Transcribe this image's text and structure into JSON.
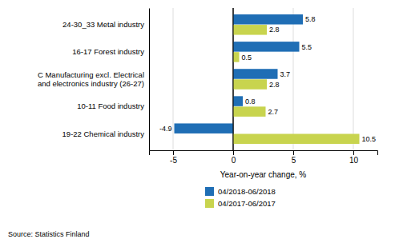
{
  "chart_data": {
    "type": "bar",
    "orientation": "horizontal",
    "categories": [
      "19-22 Chemical industry",
      "10-11 Food industry",
      "C Manufacturing excl. Electrical\nand electronics industry (26-27)",
      "16-17 Forest industry",
      "24-30_33 Metal industry"
    ],
    "series": [
      {
        "name": "04/2018-06/2018",
        "color": "#1f6eb5",
        "values": [
          -4.9,
          0.8,
          3.7,
          5.5,
          5.8
        ]
      },
      {
        "name": "04/2017-06/2017",
        "color": "#c8d44e",
        "values": [
          10.5,
          2.7,
          2.8,
          0.5,
          2.8
        ]
      }
    ],
    "xlabel": "Year-on-year change, %",
    "xlim": [
      -7,
      12
    ],
    "xticks": [
      -5,
      0,
      5,
      10
    ],
    "grid": true,
    "data_labels": true,
    "legend": "bottom",
    "annotations": [
      "Source: Statistics Finland"
    ]
  }
}
